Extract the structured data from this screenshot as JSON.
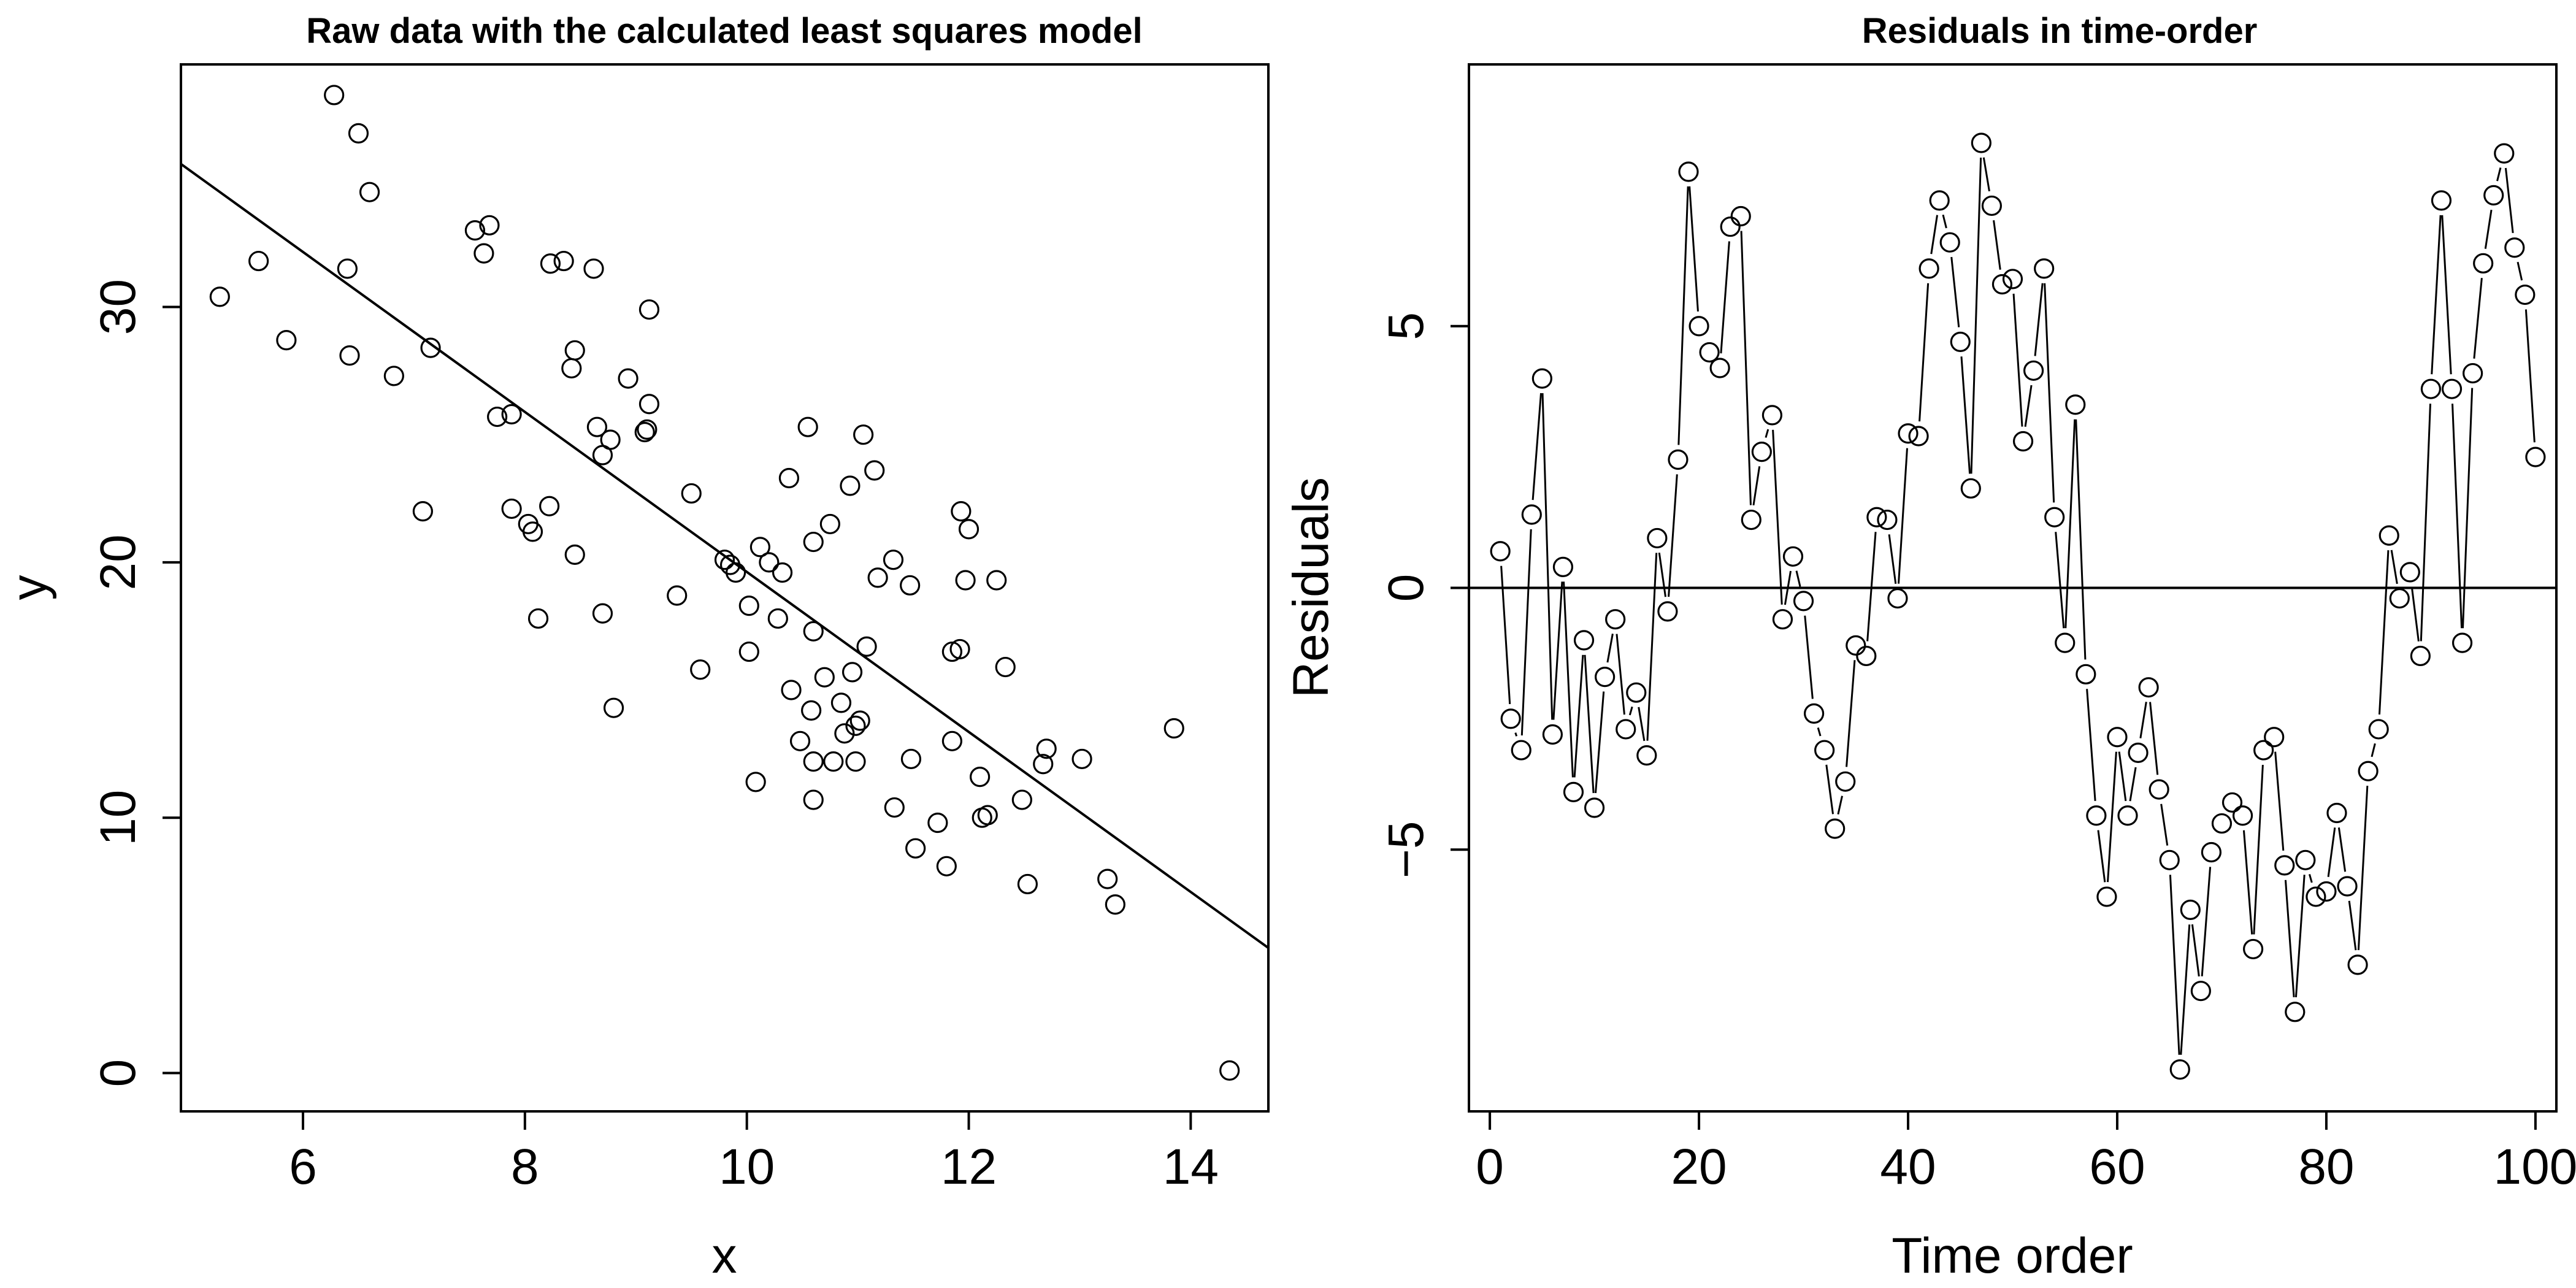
{
  "chart_data": [
    {
      "type": "scatter",
      "title": "Raw data with the calculated least squares model",
      "xlabel": "x",
      "ylabel": "y",
      "xlim": [
        4.9,
        14.7
      ],
      "ylim": [
        -1.5,
        39.5
      ],
      "xticks": [
        6,
        8,
        10,
        12,
        14
      ],
      "yticks": [
        0,
        10,
        20,
        30
      ],
      "grid": false,
      "fit_line": {
        "x": [
          4.9,
          14.7
        ],
        "y": [
          35.6,
          4.9
        ]
      },
      "points": [
        [
          5.25,
          30.4
        ],
        [
          5.6,
          31.8
        ],
        [
          5.85,
          28.7
        ],
        [
          6.28,
          38.3
        ],
        [
          6.4,
          31.5
        ],
        [
          6.42,
          28.1
        ],
        [
          6.5,
          36.8
        ],
        [
          6.6,
          34.5
        ],
        [
          6.82,
          27.3
        ],
        [
          7.08,
          22.0
        ],
        [
          7.15,
          28.4
        ],
        [
          7.55,
          33.0
        ],
        [
          7.63,
          32.1
        ],
        [
          7.68,
          33.2
        ],
        [
          7.75,
          25.7
        ],
        [
          7.88,
          25.8
        ],
        [
          7.88,
          22.1
        ],
        [
          8.03,
          21.5
        ],
        [
          8.07,
          21.2
        ],
        [
          8.12,
          17.8
        ],
        [
          8.22,
          22.2
        ],
        [
          8.23,
          31.7
        ],
        [
          8.35,
          31.8
        ],
        [
          8.42,
          27.6
        ],
        [
          8.45,
          28.3
        ],
        [
          8.45,
          20.3
        ],
        [
          8.62,
          31.5
        ],
        [
          8.65,
          25.3
        ],
        [
          8.7,
          24.2
        ],
        [
          8.7,
          18.0
        ],
        [
          8.77,
          24.8
        ],
        [
          8.8,
          14.3
        ],
        [
          8.93,
          27.2
        ],
        [
          9.08,
          25.1
        ],
        [
          9.1,
          25.2
        ],
        [
          9.12,
          29.9
        ],
        [
          9.12,
          26.2
        ],
        [
          9.37,
          18.7
        ],
        [
          9.5,
          22.7
        ],
        [
          9.58,
          15.8
        ],
        [
          9.8,
          20.1
        ],
        [
          9.85,
          19.9
        ],
        [
          9.9,
          19.6
        ],
        [
          10.02,
          18.3
        ],
        [
          10.02,
          16.5
        ],
        [
          10.08,
          11.4
        ],
        [
          10.12,
          20.6
        ],
        [
          10.2,
          20.0
        ],
        [
          10.28,
          17.8
        ],
        [
          10.32,
          19.6
        ],
        [
          10.38,
          23.3
        ],
        [
          10.4,
          15.0
        ],
        [
          10.48,
          13.0
        ],
        [
          10.55,
          25.3
        ],
        [
          10.58,
          14.2
        ],
        [
          10.6,
          20.8
        ],
        [
          10.6,
          17.3
        ],
        [
          10.6,
          12.2
        ],
        [
          10.6,
          10.7
        ],
        [
          10.7,
          15.5
        ],
        [
          10.75,
          21.5
        ],
        [
          10.78,
          12.2
        ],
        [
          10.85,
          14.5
        ],
        [
          10.88,
          13.3
        ],
        [
          10.93,
          23.0
        ],
        [
          10.95,
          15.7
        ],
        [
          10.98,
          13.6
        ],
        [
          10.98,
          12.2
        ],
        [
          11.02,
          13.8
        ],
        [
          11.05,
          25.0
        ],
        [
          11.08,
          16.7
        ],
        [
          11.15,
          23.6
        ],
        [
          11.18,
          19.4
        ],
        [
          11.32,
          20.1
        ],
        [
          11.33,
          10.4
        ],
        [
          11.47,
          19.1
        ],
        [
          11.48,
          12.3
        ],
        [
          11.52,
          8.8
        ],
        [
          11.72,
          9.8
        ],
        [
          11.8,
          8.1
        ],
        [
          11.85,
          16.5
        ],
        [
          11.85,
          13.0
        ],
        [
          11.92,
          16.6
        ],
        [
          11.93,
          22.0
        ],
        [
          11.97,
          19.3
        ],
        [
          12.0,
          21.3
        ],
        [
          12.1,
          11.6
        ],
        [
          12.12,
          10.0
        ],
        [
          12.17,
          10.1
        ],
        [
          12.25,
          19.3
        ],
        [
          12.33,
          15.9
        ],
        [
          12.48,
          10.7
        ],
        [
          12.53,
          7.4
        ],
        [
          12.67,
          12.1
        ],
        [
          12.7,
          12.7
        ],
        [
          13.02,
          12.3
        ],
        [
          13.25,
          7.6
        ],
        [
          13.32,
          6.6
        ],
        [
          13.85,
          13.5
        ],
        [
          14.35,
          0.1
        ]
      ]
    },
    {
      "type": "line",
      "title": "Residuals in time-order",
      "xlabel": "Time order",
      "ylabel": "Residuals",
      "xlim": [
        -2,
        102
      ],
      "ylim": [
        -10,
        10
      ],
      "xticks": [
        0,
        20,
        40,
        60,
        80,
        100
      ],
      "yticks": [
        -5,
        0,
        5
      ],
      "grid": false,
      "reference_line_y": 0,
      "x": [
        1,
        2,
        3,
        4,
        5,
        6,
        7,
        8,
        9,
        10,
        11,
        12,
        13,
        14,
        15,
        16,
        17,
        18,
        19,
        20,
        21,
        22,
        23,
        24,
        25,
        26,
        27,
        28,
        29,
        30,
        31,
        32,
        33,
        34,
        35,
        36,
        37,
        38,
        39,
        40,
        41,
        42,
        43,
        44,
        45,
        46,
        47,
        48,
        49,
        50,
        51,
        52,
        53,
        54,
        55,
        56,
        57,
        58,
        59,
        60,
        61,
        62,
        63,
        64,
        65,
        66,
        67,
        68,
        69,
        70,
        71,
        72,
        73,
        74,
        75,
        76,
        77,
        78,
        79,
        80,
        81,
        82,
        83,
        84,
        85,
        86,
        87,
        88,
        89,
        90,
        91,
        92,
        93,
        94,
        95,
        96,
        97,
        98,
        99,
        100
      ],
      "series": [
        {
          "values": [
            0.7,
            -2.5,
            -3.1,
            1.4,
            4.0,
            -2.8,
            0.4,
            -3.9,
            -1.0,
            -4.2,
            -1.7,
            -0.6,
            -2.7,
            -2.0,
            -3.2,
            0.95,
            -0.45,
            2.45,
            7.95,
            5.0,
            4.5,
            4.2,
            6.9,
            7.1,
            1.3,
            2.6,
            3.3,
            -0.6,
            0.6,
            -0.25,
            -2.4,
            -3.1,
            -4.6,
            -3.7,
            -1.1,
            -1.3,
            1.35,
            1.3,
            -0.2,
            2.95,
            2.9,
            6.1,
            7.4,
            6.6,
            4.7,
            1.9,
            8.5,
            7.3,
            5.8,
            5.9,
            2.8,
            4.15,
            6.1,
            1.35,
            -1.05,
            3.5,
            -1.65,
            -4.35,
            -5.9,
            -2.85,
            -4.35,
            -3.15,
            -1.9,
            -3.85,
            -5.2,
            -9.2,
            -6.15,
            -7.7,
            -5.05,
            -4.5,
            -4.1,
            -4.35,
            -6.9,
            -3.1,
            -2.85,
            -5.3,
            -8.1,
            -5.2,
            -5.9,
            -5.8,
            -4.3,
            -5.7,
            -7.2,
            -3.5,
            -2.7,
            1.0,
            -0.2,
            0.3,
            -1.3,
            3.8,
            7.4,
            3.8,
            -1.05,
            4.1,
            6.2,
            7.5,
            8.3,
            6.5,
            5.6,
            2.5
          ]
        }
      ]
    }
  ]
}
